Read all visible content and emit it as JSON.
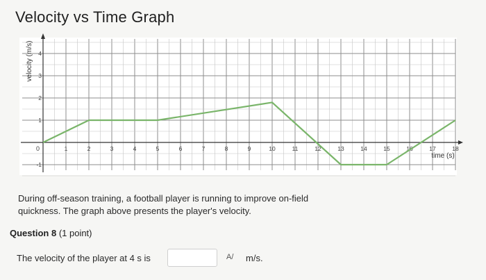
{
  "page": {
    "title": "Velocity vs Time Graph"
  },
  "chart_data": {
    "type": "line",
    "ylabel": "velocity (m/s)",
    "xlabel": "time (s)",
    "xlim": [
      0,
      18
    ],
    "ylim": [
      -1,
      4
    ],
    "x_ticks": [
      "1",
      "2",
      "3",
      "4",
      "5",
      "6",
      "7",
      "8",
      "9",
      "10",
      "11",
      "12",
      "13",
      "14",
      "15",
      "16",
      "17",
      "18"
    ],
    "y_ticks": [
      "-1",
      "1",
      "2",
      "3",
      "4"
    ],
    "origin_label": "0",
    "grid": true,
    "series": [
      {
        "x": [
          0,
          2,
          5,
          10,
          13,
          15,
          18
        ],
        "y": [
          0,
          1,
          1,
          1.8,
          -1,
          -1,
          1
        ],
        "color": "#7ab56a"
      }
    ]
  },
  "description": {
    "line1": "During off-season training, a football player is running to improve on-field",
    "line2": "quickness. The graph above presents the player's velocity."
  },
  "question": {
    "label": "Question 8",
    "points": "(1 point)",
    "text": "The velocity of the player at 4 s is",
    "answer_value": "",
    "unit": "m/s.",
    "spell_icon_glyph": "A/"
  }
}
